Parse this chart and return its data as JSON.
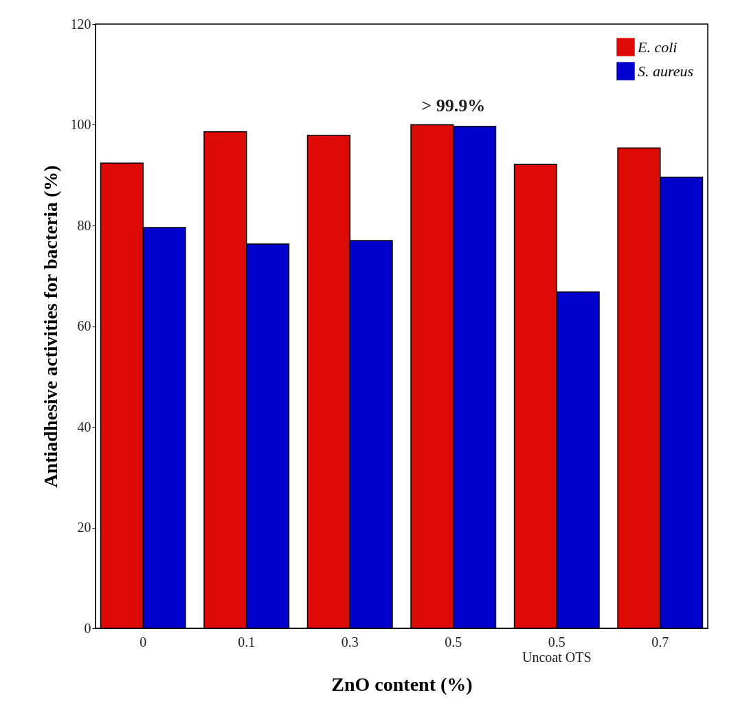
{
  "chart_data": {
    "type": "bar",
    "xlabel": "ZnO content (%)",
    "ylabel": "Antiadhesive activities for bacteria (%)",
    "categories": [
      "0",
      "0.1",
      "0.3",
      "0.5",
      "0.5\nUncoat OTS",
      "0.7"
    ],
    "series": [
      {
        "name": "E. coli",
        "color": "#dd0a05",
        "values": [
          92.4,
          98.6,
          97.9,
          100,
          92.1,
          95.4
        ]
      },
      {
        "name": "S. aureus",
        "color": "#0000cc",
        "values": [
          79.6,
          76.3,
          77.0,
          99.7,
          66.8,
          89.6
        ]
      }
    ],
    "ylim": [
      0,
      120
    ],
    "yticks": [
      0,
      20,
      40,
      60,
      80,
      100,
      120
    ],
    "grid": false,
    "legend": "top right",
    "annotations": [
      {
        "text": "> 99.9%",
        "x": "0.5",
        "y": 100
      }
    ]
  }
}
